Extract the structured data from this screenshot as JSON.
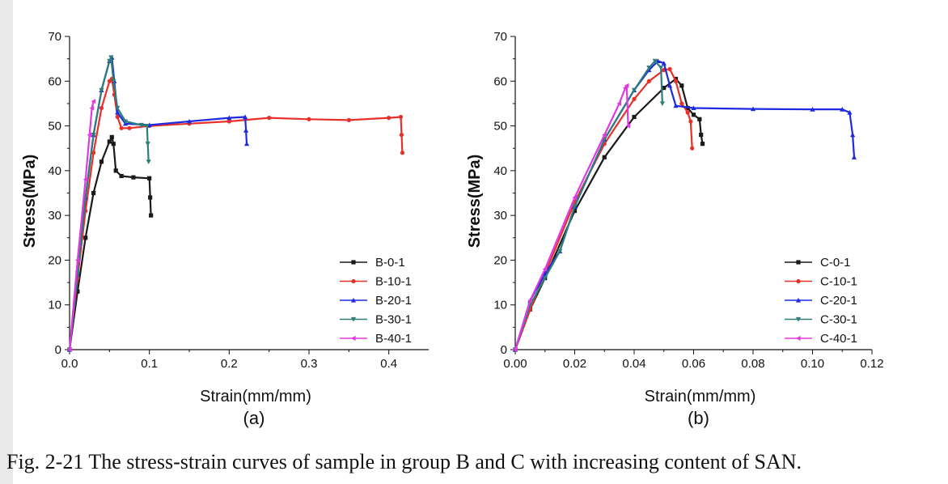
{
  "caption": "Fig. 2-21 The stress-strain curves of sample in group B and C with increasing content of SAN.",
  "chart_data": [
    {
      "type": "line",
      "panel_label": "(a)",
      "xlabel": "Strain(mm/mm)",
      "ylabel": "Stress(MPa)",
      "xlim": [
        0,
        0.45
      ],
      "ylim": [
        0,
        70
      ],
      "xticks": [
        "0.0",
        "0.1",
        "0.2",
        "0.3",
        "0.4"
      ],
      "yticks": [
        "0",
        "10",
        "20",
        "30",
        "40",
        "50",
        "60",
        "70"
      ],
      "legend_position": "bottom-right",
      "series": [
        {
          "name": "B-0-1",
          "color": "#1a1a1a",
          "marker": "square",
          "x": [
            0,
            0.01,
            0.02,
            0.03,
            0.04,
            0.05,
            0.053,
            0.055,
            0.058,
            0.065,
            0.08,
            0.1,
            0.101,
            0.102
          ],
          "y": [
            0,
            13,
            25,
            35,
            42,
            46.5,
            47.5,
            46,
            40,
            38.8,
            38.5,
            38.3,
            34,
            30
          ]
        },
        {
          "name": "B-10-1",
          "color": "#e8302a",
          "marker": "circle",
          "x": [
            0,
            0.01,
            0.02,
            0.03,
            0.04,
            0.05,
            0.053,
            0.056,
            0.06,
            0.065,
            0.075,
            0.1,
            0.15,
            0.2,
            0.25,
            0.3,
            0.35,
            0.4,
            0.415,
            0.416,
            0.417
          ],
          "y": [
            0,
            16,
            31,
            44,
            54,
            60,
            60.5,
            57,
            52,
            49.5,
            49.5,
            50,
            50.5,
            51,
            51.8,
            51.5,
            51.3,
            51.8,
            52,
            48,
            44
          ]
        },
        {
          "name": "B-20-1",
          "color": "#1f2ae0",
          "marker": "triangle",
          "x": [
            0,
            0.01,
            0.02,
            0.03,
            0.04,
            0.05,
            0.053,
            0.056,
            0.06,
            0.07,
            0.1,
            0.15,
            0.2,
            0.22,
            0.221,
            0.222
          ],
          "y": [
            0,
            17,
            34,
            48,
            58,
            64.5,
            65.3,
            60,
            53,
            50.5,
            50.2,
            51,
            51.8,
            52,
            49,
            46
          ]
        },
        {
          "name": "B-30-1",
          "color": "#2e7d7d",
          "marker": "triangle-down",
          "x": [
            0,
            0.01,
            0.02,
            0.03,
            0.04,
            0.05,
            0.052,
            0.055,
            0.06,
            0.07,
            0.09,
            0.097,
            0.098,
            0.099
          ],
          "y": [
            0,
            17,
            34,
            48,
            58,
            64.5,
            65.3,
            60,
            54,
            51,
            50.2,
            50,
            46,
            42
          ]
        },
        {
          "name": "B-40-1",
          "color": "#e03ae0",
          "marker": "triangle-left",
          "x": [
            0,
            0.01,
            0.02,
            0.025,
            0.028,
            0.03
          ],
          "y": [
            0,
            20,
            38,
            48,
            54,
            55.5
          ]
        }
      ]
    },
    {
      "type": "line",
      "panel_label": "(b)",
      "xlabel": "Strain(mm/mm)",
      "ylabel": "Stress(MPa)",
      "xlim": [
        0,
        0.12
      ],
      "ylim": [
        0,
        70
      ],
      "xticks": [
        "0.00",
        "0.02",
        "0.04",
        "0.06",
        "0.08",
        "0.10",
        "0.12"
      ],
      "yticks": [
        "0",
        "10",
        "20",
        "30",
        "40",
        "50",
        "60",
        "70"
      ],
      "legend_position": "bottom-right",
      "series": [
        {
          "name": "C-0-1",
          "color": "#1a1a1a",
          "marker": "square",
          "x": [
            0,
            0.005,
            0.01,
            0.02,
            0.03,
            0.04,
            0.05,
            0.054,
            0.056,
            0.058,
            0.06,
            0.062,
            0.0625,
            0.063
          ],
          "y": [
            0,
            9,
            16,
            31,
            43,
            52,
            58.5,
            60.5,
            59,
            54,
            52.5,
            51.5,
            48,
            46
          ]
        },
        {
          "name": "C-10-1",
          "color": "#e8302a",
          "marker": "circle",
          "x": [
            0,
            0.005,
            0.01,
            0.02,
            0.03,
            0.04,
            0.045,
            0.05,
            0.052,
            0.054,
            0.056,
            0.058,
            0.059,
            0.0595
          ],
          "y": [
            0,
            9,
            17,
            33,
            46,
            56,
            60,
            62.5,
            62.7,
            60,
            55,
            53,
            51,
            45
          ]
        },
        {
          "name": "C-20-1",
          "color": "#1f2ae0",
          "marker": "triangle",
          "x": [
            0,
            0.005,
            0.01,
            0.015,
            0.02,
            0.03,
            0.04,
            0.045,
            0.048,
            0.05,
            0.052,
            0.054,
            0.06,
            0.08,
            0.1,
            0.11,
            0.1125,
            0.1135,
            0.114
          ],
          "y": [
            0,
            11,
            17,
            22,
            32,
            47,
            58,
            62.5,
            64.5,
            64,
            59,
            54.5,
            54,
            53.8,
            53.7,
            53.7,
            53,
            48,
            43
          ]
        },
        {
          "name": "C-30-1",
          "color": "#2e7d7d",
          "marker": "triangle-down",
          "x": [
            0,
            0.005,
            0.01,
            0.015,
            0.02,
            0.03,
            0.04,
            0.045,
            0.047,
            0.049,
            0.0495
          ],
          "y": [
            0,
            10,
            16,
            22,
            32,
            47,
            58,
            63,
            64.5,
            63,
            55
          ]
        },
        {
          "name": "C-40-1",
          "color": "#e03ae0",
          "marker": "triangle-left",
          "x": [
            0,
            0.005,
            0.01,
            0.02,
            0.03,
            0.035,
            0.037,
            0.0375,
            0.038
          ],
          "y": [
            0,
            11,
            18,
            34,
            48,
            55,
            58.5,
            59,
            50
          ]
        }
      ]
    }
  ]
}
